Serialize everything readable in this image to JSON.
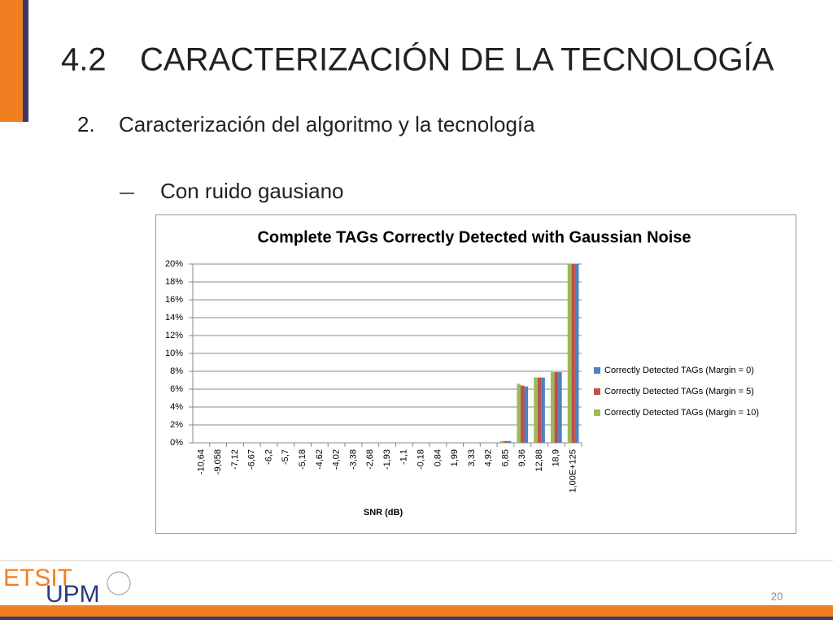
{
  "slide": {
    "title_number": "4.2",
    "title": "CARACTERIZACIÓN DE LA TECNOLOGÍA",
    "section_number": "2.",
    "section": "Caracterización del algoritmo y la tecnología",
    "sub_bullet": "Con ruido gausiano"
  },
  "chart_data": {
    "type": "bar",
    "title": "Complete TAGs Correctly Detected with Gaussian Noise",
    "x_label": "SNR (dB)",
    "categories": [
      "-10,64",
      "-9,058",
      "-7,12",
      "-6,67",
      "-6,2",
      "-5,7",
      "-5,18",
      "-4,62",
      "-4,02",
      "-3,38",
      "-2,68",
      "-1,93",
      "-1,1",
      "-0,18",
      "0,84",
      "1,99",
      "3,33",
      "4,92",
      "6,85",
      "9,36",
      "12,88",
      "18,9",
      "1,00E+125"
    ],
    "series": [
      {
        "name": "Correctly Detected TAGs (Margin = 0)",
        "color": "#4f81bd",
        "values": [
          0,
          0,
          0,
          0,
          0,
          0,
          0,
          0,
          0,
          0,
          0,
          0,
          0,
          0,
          0,
          0,
          0,
          0,
          0.2,
          6.3,
          7.3,
          7.9,
          20
        ]
      },
      {
        "name": "Correctly Detected TAGs (Margin = 5)",
        "color": "#c0504d",
        "values": [
          0,
          0,
          0,
          0,
          0,
          0,
          0,
          0,
          0,
          0,
          0,
          0,
          0,
          0,
          0,
          0,
          0,
          0,
          0.2,
          6.4,
          7.3,
          7.9,
          20
        ]
      },
      {
        "name": "Correctly Detected TAGs (Margin = 10)",
        "color": "#9bbb59",
        "values": [
          0,
          0,
          0,
          0,
          0,
          0,
          0,
          0,
          0,
          0,
          0,
          0,
          0,
          0,
          0,
          0,
          0,
          0,
          0.2,
          6.6,
          7.3,
          7.9,
          20
        ]
      }
    ],
    "ylim": [
      0,
      20
    ],
    "yticks": [
      {
        "value": 0,
        "label": "0%"
      },
      {
        "value": 2,
        "label": "2%"
      },
      {
        "value": 4,
        "label": "4%"
      },
      {
        "value": 6,
        "label": "6%"
      },
      {
        "value": 8,
        "label": "8%"
      },
      {
        "value": 10,
        "label": "10%"
      },
      {
        "value": 12,
        "label": "12%"
      },
      {
        "value": 14,
        "label": "14%"
      },
      {
        "value": 16,
        "label": "16%"
      },
      {
        "value": 18,
        "label": "18%"
      },
      {
        "value": 20,
        "label": "20%"
      }
    ],
    "grid": true,
    "legend": "right"
  },
  "footer": {
    "logo_top": "ETSIT",
    "logo_bottom": "UPM",
    "page_number": "20"
  }
}
